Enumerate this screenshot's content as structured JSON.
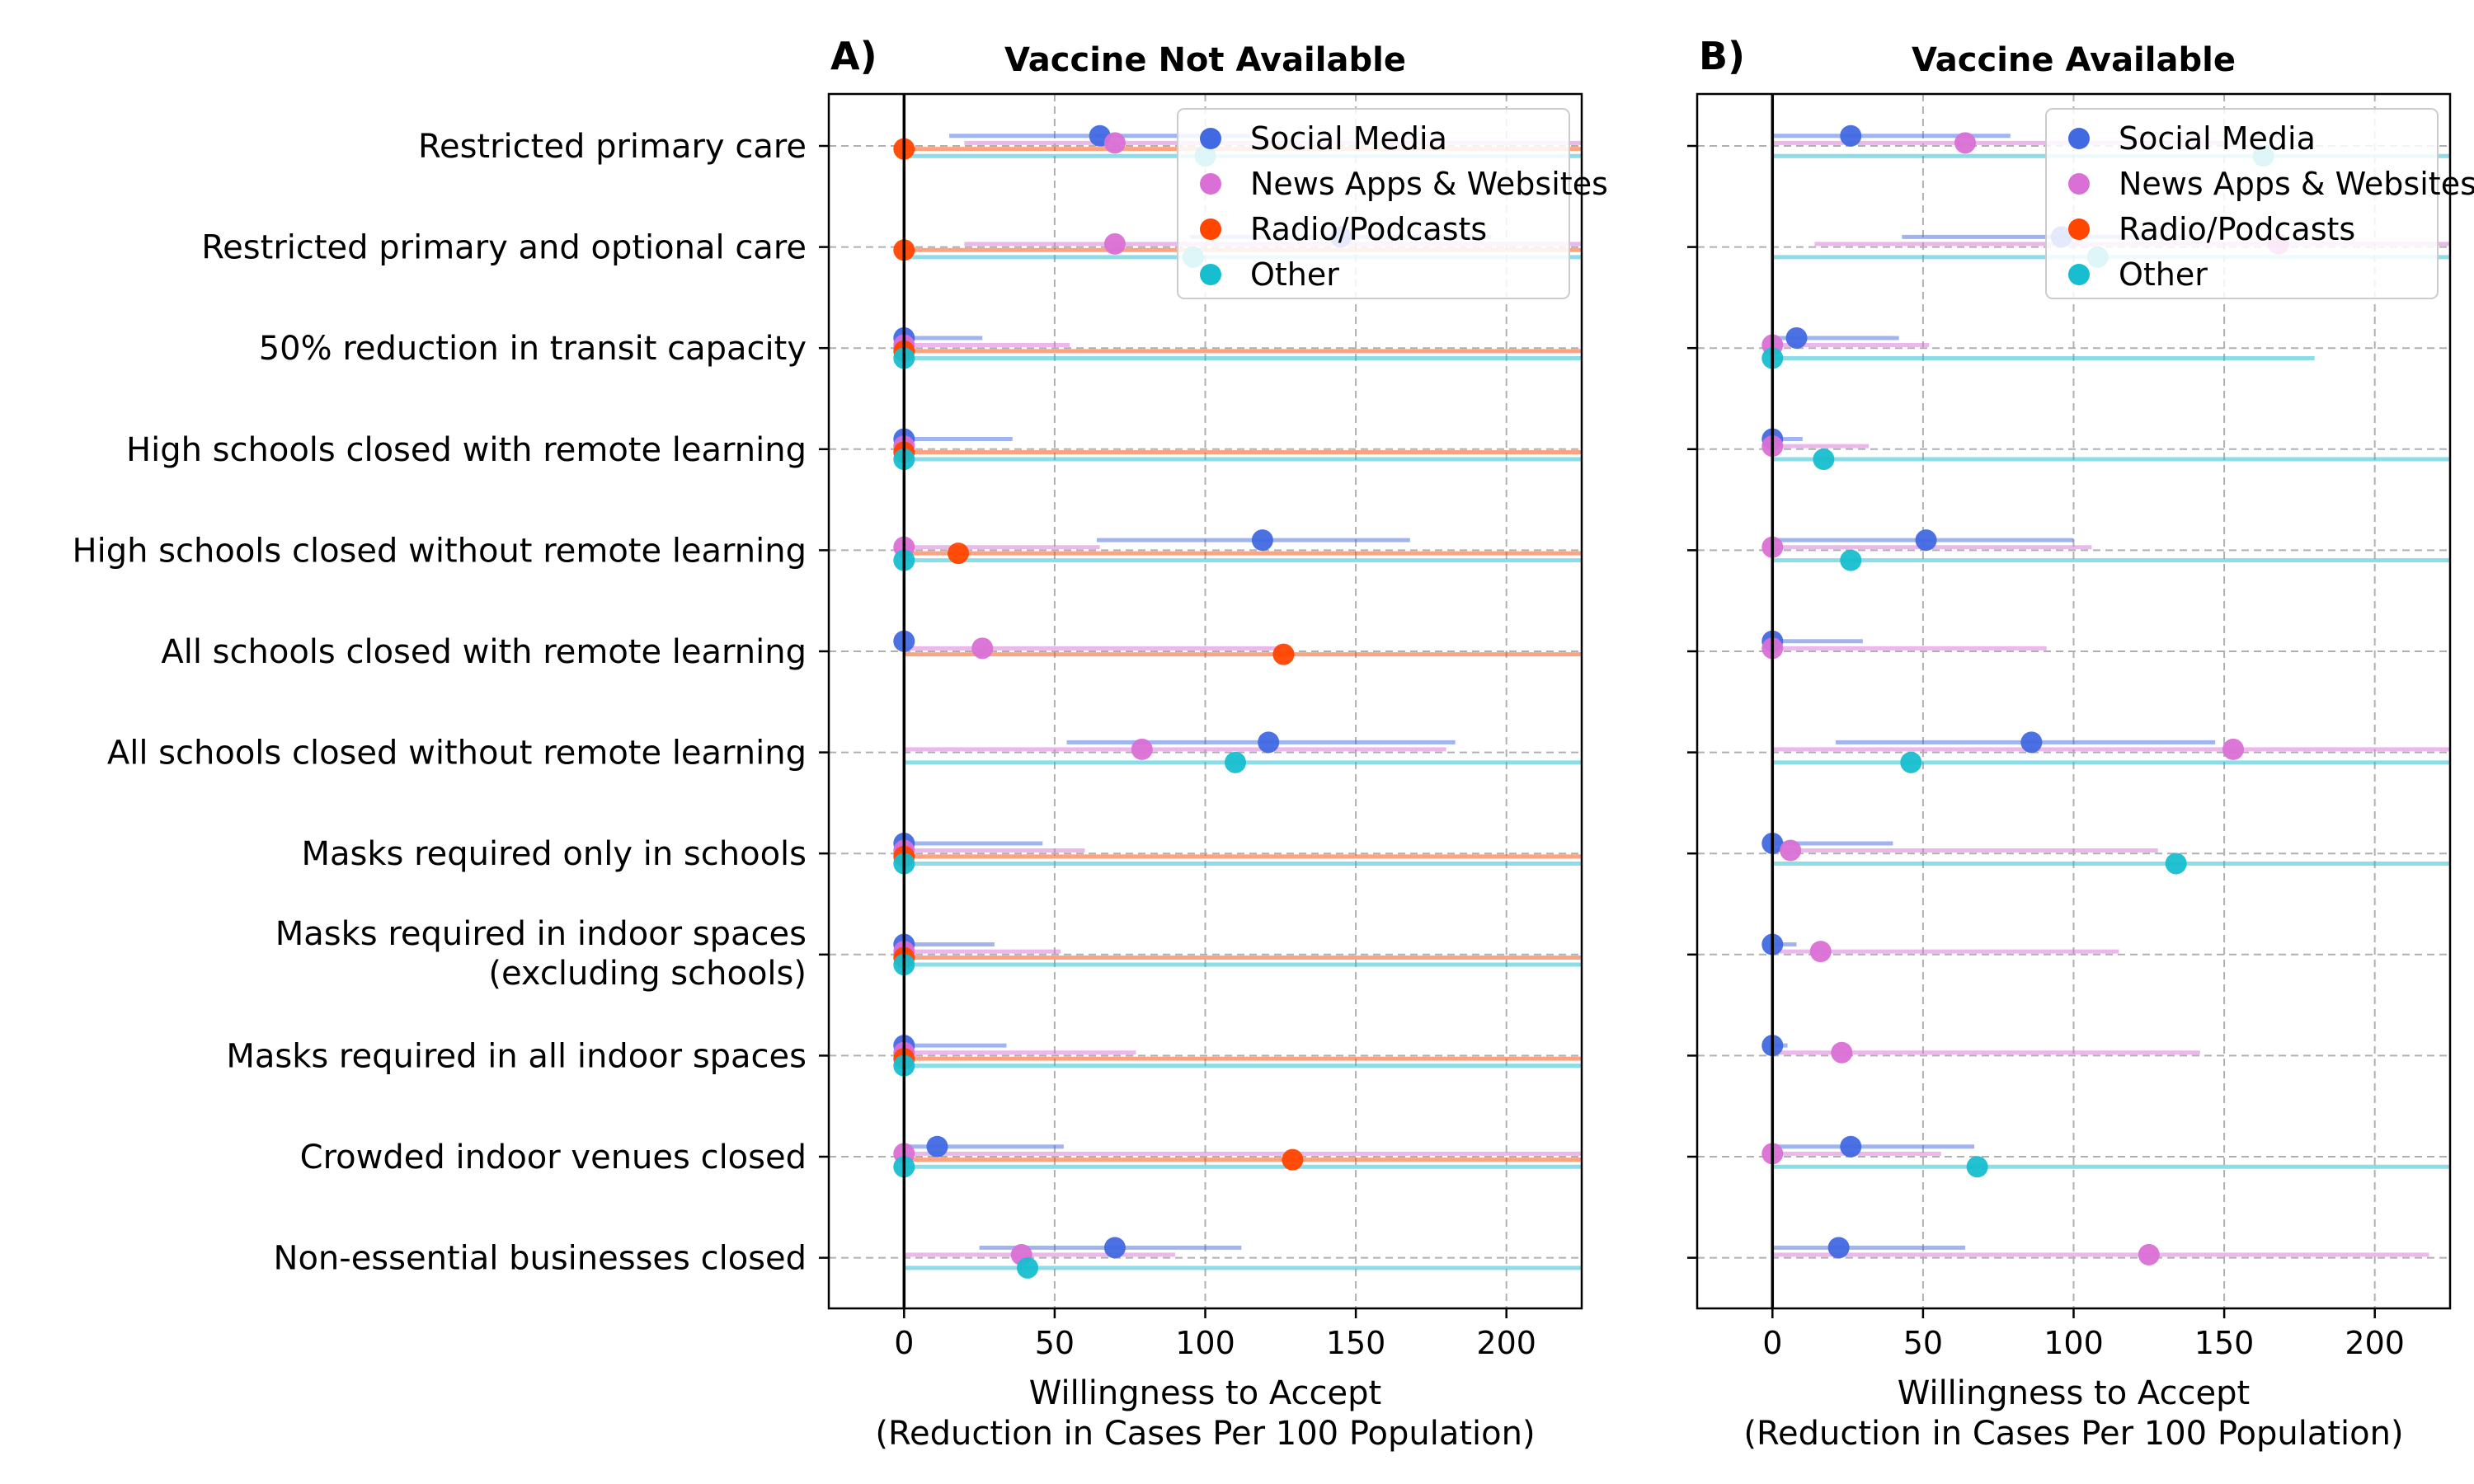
{
  "chart_data": [
    {
      "panel_label": "A)",
      "title": "Vaccine Not Available",
      "type": "scatter",
      "xlabel": [
        "Willingness to Accept",
        "(Reduction in Cases Per 100 Population)"
      ],
      "xlim": [
        -25,
        225
      ],
      "xticks": [
        0,
        50,
        100,
        150,
        200
      ],
      "grid": true,
      "legend_position": "top-right",
      "categories": [
        [
          "Restricted primary care"
        ],
        [
          "Restricted primary and optional care"
        ],
        [
          "50% reduction in transit capacity"
        ],
        [
          "High schools closed with remote learning"
        ],
        [
          "High schools closed without remote learning"
        ],
        [
          "All schools closed with remote learning"
        ],
        [
          "All schools closed without remote learning"
        ],
        [
          "Masks required only in schools"
        ],
        [
          "Masks required in indoor spaces",
          "(excluding schools)"
        ],
        [
          "Masks required in all indoor spaces"
        ],
        [
          "Crowded indoor venues closed"
        ],
        [
          "Non-essential businesses closed"
        ]
      ],
      "series": [
        {
          "name": "Social Media",
          "color": "#4169e1",
          "offset": -0.1,
          "values": [
            65,
            145,
            0,
            0,
            119,
            0,
            121,
            0,
            0,
            0,
            11,
            70
          ],
          "ci_low": [
            15,
            95,
            0,
            0,
            64,
            null,
            54,
            0,
            0,
            0,
            0,
            25
          ],
          "ci_high": [
            115,
            195,
            26,
            36,
            168,
            null,
            183,
            46,
            30,
            34,
            53,
            112
          ]
        },
        {
          "name": "News Apps & Websites",
          "color": "#da70d6",
          "offset": -0.03,
          "values": [
            70,
            70,
            0,
            0,
            0,
            26,
            79,
            0,
            0,
            0,
            0,
            39
          ],
          "ci_low": [
            20,
            20,
            0,
            null,
            0,
            0,
            0,
            0,
            0,
            0,
            0,
            0
          ],
          "ci_high": [
            225,
            225,
            55,
            null,
            65,
            125,
            180,
            60,
            52,
            77,
            225,
            90
          ]
        },
        {
          "name": "Radio/Podcasts",
          "color": "#ff4500",
          "offset": 0.03,
          "values": [
            0,
            0,
            0,
            0,
            18,
            126,
            null,
            0,
            0,
            0,
            129,
            null
          ],
          "ci_low": [
            0,
            0,
            0,
            0,
            0,
            0,
            null,
            0,
            0,
            0,
            0,
            null
          ],
          "ci_high": [
            225,
            225,
            225,
            225,
            225,
            225,
            null,
            225,
            225,
            225,
            225,
            null
          ]
        },
        {
          "name": "Other",
          "color": "#17becf",
          "offset": 0.1,
          "values": [
            100,
            96,
            0,
            0,
            0,
            null,
            110,
            0,
            0,
            0,
            0,
            41
          ],
          "ci_low": [
            0,
            0,
            0,
            0,
            0,
            null,
            0,
            0,
            0,
            0,
            0,
            0
          ],
          "ci_high": [
            225,
            225,
            225,
            225,
            225,
            null,
            225,
            225,
            225,
            225,
            225,
            225
          ]
        }
      ]
    },
    {
      "panel_label": "B)",
      "title": "Vaccine Available",
      "type": "scatter",
      "xlabel": [
        "Willingness to Accept",
        "(Reduction in Cases Per 100 Population)"
      ],
      "xlim": [
        -25,
        225
      ],
      "xticks": [
        0,
        50,
        100,
        150,
        200
      ],
      "grid": true,
      "legend_position": "top-right",
      "series": [
        {
          "name": "Social Media",
          "color": "#4169e1",
          "offset": -0.1,
          "values": [
            26,
            96,
            8,
            0,
            51,
            0,
            86,
            0,
            0,
            0,
            26,
            22
          ],
          "ci_low": [
            0,
            43,
            0,
            0,
            0,
            0,
            21,
            0,
            0,
            0,
            0,
            0
          ],
          "ci_high": [
            79,
            140,
            42,
            10,
            100,
            30,
            147,
            40,
            8,
            5,
            67,
            64
          ]
        },
        {
          "name": "News Apps & Websites",
          "color": "#da70d6",
          "offset": -0.03,
          "values": [
            64,
            168,
            0,
            0,
            0,
            0,
            153,
            6,
            16,
            23,
            0,
            125
          ],
          "ci_low": [
            0,
            14,
            0,
            0,
            0,
            0,
            0,
            0,
            0,
            0,
            0,
            0
          ],
          "ci_high": [
            150,
            225,
            52,
            32,
            106,
            91,
            225,
            128,
            115,
            142,
            56,
            218
          ]
        },
        {
          "name": "Radio/Podcasts",
          "color": "#ff4500",
          "offset": 0.03,
          "values": [
            null,
            null,
            null,
            null,
            null,
            null,
            null,
            null,
            null,
            null,
            null,
            null
          ],
          "ci_low": [
            null,
            null,
            null,
            null,
            null,
            null,
            null,
            null,
            null,
            null,
            null,
            null
          ],
          "ci_high": [
            null,
            null,
            null,
            null,
            null,
            null,
            null,
            null,
            null,
            null,
            null,
            null
          ]
        },
        {
          "name": "Other",
          "color": "#17becf",
          "offset": 0.1,
          "values": [
            163,
            108,
            0,
            17,
            26,
            null,
            46,
            134,
            null,
            null,
            68,
            null
          ],
          "ci_low": [
            0,
            0,
            0,
            0,
            0,
            null,
            0,
            0,
            null,
            null,
            0,
            null
          ],
          "ci_high": [
            225,
            225,
            180,
            225,
            225,
            null,
            225,
            225,
            null,
            null,
            225,
            null
          ]
        }
      ]
    }
  ]
}
